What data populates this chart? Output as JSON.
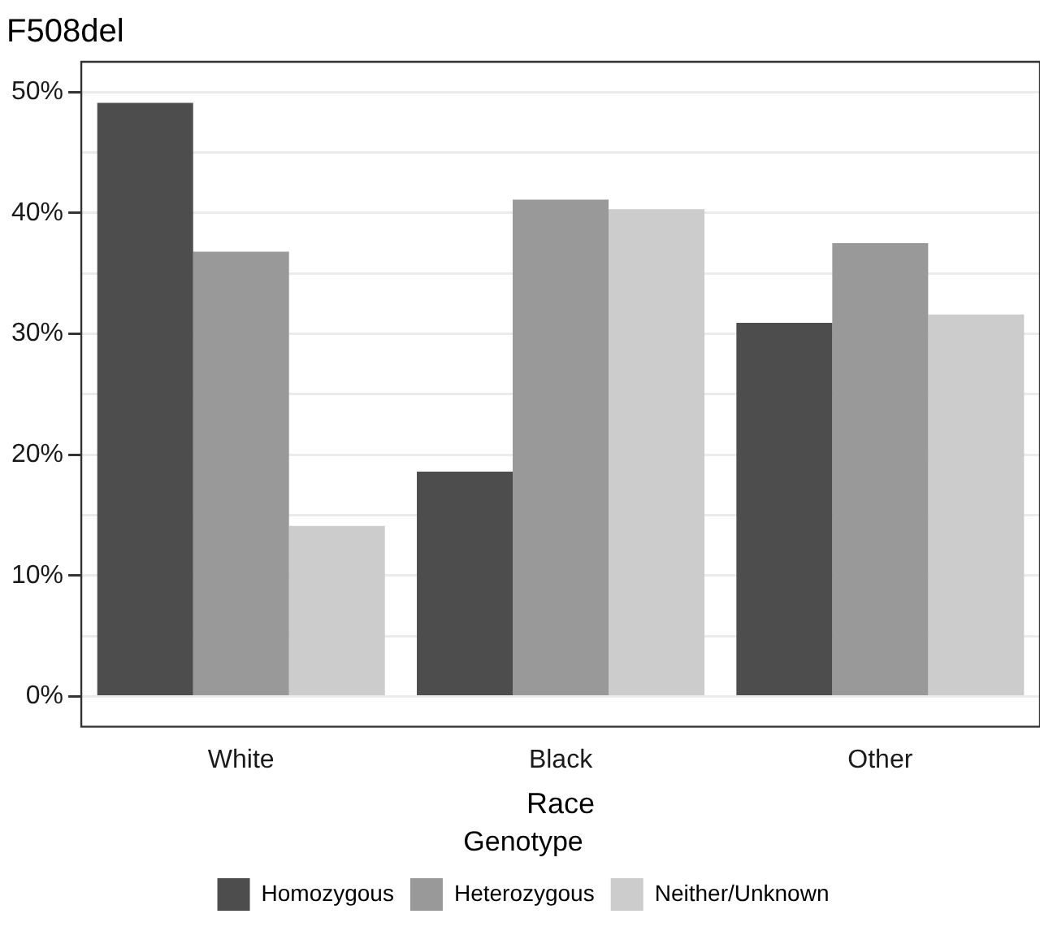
{
  "chart_data": {
    "type": "bar",
    "title": "F508del",
    "xlabel": "Race",
    "legend_title": "Genotype",
    "categories": [
      "White",
      "Black",
      "Other"
    ],
    "series": [
      {
        "name": "Homozygous",
        "color": "#4d4d4d",
        "values": [
          49.1,
          18.6,
          30.9
        ]
      },
      {
        "name": "Heterozygous",
        "color": "#999999",
        "values": [
          36.8,
          41.1,
          37.5
        ]
      },
      {
        "name": "Neither/Unknown",
        "color": "#cccccc",
        "values": [
          14.1,
          40.3,
          31.6
        ]
      }
    ],
    "ylim": [
      -2.5,
      52.5
    ],
    "yticks": [
      {
        "value": 0,
        "label": "0%"
      },
      {
        "value": 5,
        "label": null
      },
      {
        "value": 10,
        "label": "10%"
      },
      {
        "value": 15,
        "label": null
      },
      {
        "value": 20,
        "label": "20%"
      },
      {
        "value": 25,
        "label": null
      },
      {
        "value": 30,
        "label": "30%"
      },
      {
        "value": 35,
        "label": null
      },
      {
        "value": 40,
        "label": "40%"
      },
      {
        "value": 45,
        "label": null
      },
      {
        "value": 50,
        "label": "50%"
      }
    ],
    "grid": "y",
    "legend": "bottom"
  }
}
